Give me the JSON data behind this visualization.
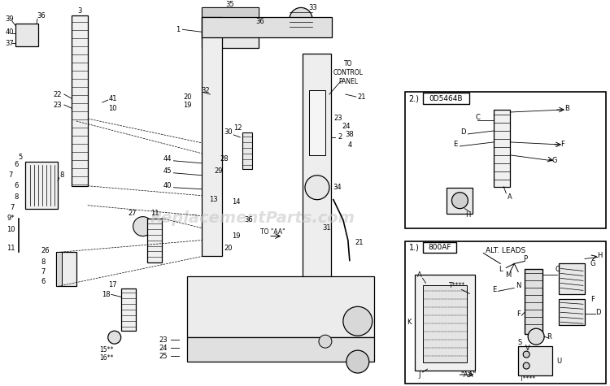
{
  "bg_color": "#ffffff",
  "watermark": "ReplacementParts.com",
  "fig_width": 7.5,
  "fig_height": 4.75,
  "box1_id": "0D5464B",
  "box2_id": "800AF",
  "box2_alt_leads": "ALT. LEADS",
  "control_panel_text": "TO\nCONTROL\nPANEL",
  "to_aa_text": "TO \"AA\"",
  "box2_aa": "\"AA\""
}
